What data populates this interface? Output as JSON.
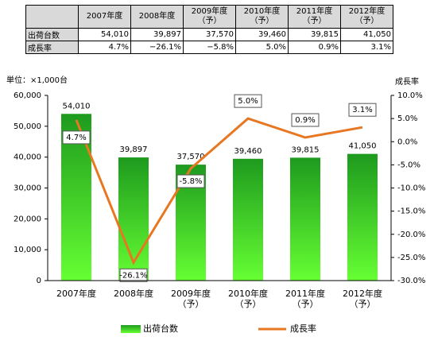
{
  "table": {
    "columns": [
      "2007年度",
      "2008年度",
      "2009年度（予）",
      "2010年度（予）",
      "2011年度（予）",
      "2012年度（予）"
    ],
    "rows": [
      {
        "label": "出荷台数",
        "cells": [
          "54,010",
          "39,897",
          "37,570",
          "39,460",
          "39,815",
          "41,050"
        ]
      },
      {
        "label": "成長率",
        "cells": [
          "4.7%",
          "−26.1%",
          "−5.8%",
          "5.0%",
          "0.9%",
          "3.1%"
        ]
      }
    ]
  },
  "chart_data": {
    "type": "bar",
    "units_label": "単位：×1,000台",
    "y2_label": "成長率",
    "categories": [
      "2007年度",
      "2008年度",
      "2009年度（予）",
      "2010年度（予）",
      "2011年度（予）",
      "2012年度（予）"
    ],
    "series": [
      {
        "name": "出荷台数",
        "type": "bar",
        "color": "#2ca02c",
        "values": [
          54010,
          39897,
          37570,
          39460,
          39815,
          41050
        ],
        "value_labels": [
          "54,010",
          "39,897",
          "37,570",
          "39,460",
          "39,815",
          "41,050"
        ]
      },
      {
        "name": "成長率",
        "type": "line",
        "axis": "y2",
        "color": "#e87722",
        "values": [
          4.7,
          -26.1,
          -5.8,
          5.0,
          0.9,
          3.1
        ],
        "value_labels": [
          "4.7%",
          "-26.1%",
          "-5.8%",
          "5.0%",
          "0.9%",
          "3.1%"
        ]
      }
    ],
    "ylim": [
      0,
      60000
    ],
    "yticks": [
      0,
      {
        "value": 10000,
        "label": "10,000"
      },
      {
        "value": 20000,
        "label": "20,000"
      },
      {
        "value": 30000,
        "label": "30,000"
      },
      {
        "value": 40000,
        "label": "40,000"
      },
      {
        "value": 50000,
        "label": "50,000"
      },
      {
        "value": 60000,
        "label": "60,000"
      }
    ],
    "y2lim": [
      -30,
      10
    ],
    "y2ticks": [
      {
        "value": -30,
        "label": "-30.0%"
      },
      {
        "value": -25,
        "label": "-25.0%"
      },
      {
        "value": -20,
        "label": "-20.0%"
      },
      {
        "value": -15,
        "label": "-15.0%"
      },
      {
        "value": -10,
        "label": "-10.0%"
      },
      {
        "value": -5,
        "label": "-5.0%"
      },
      {
        "value": 0,
        "label": "0.0%"
      },
      {
        "value": 5,
        "label": "5.0%"
      },
      {
        "value": 10,
        "label": "10.0%"
      }
    ]
  }
}
